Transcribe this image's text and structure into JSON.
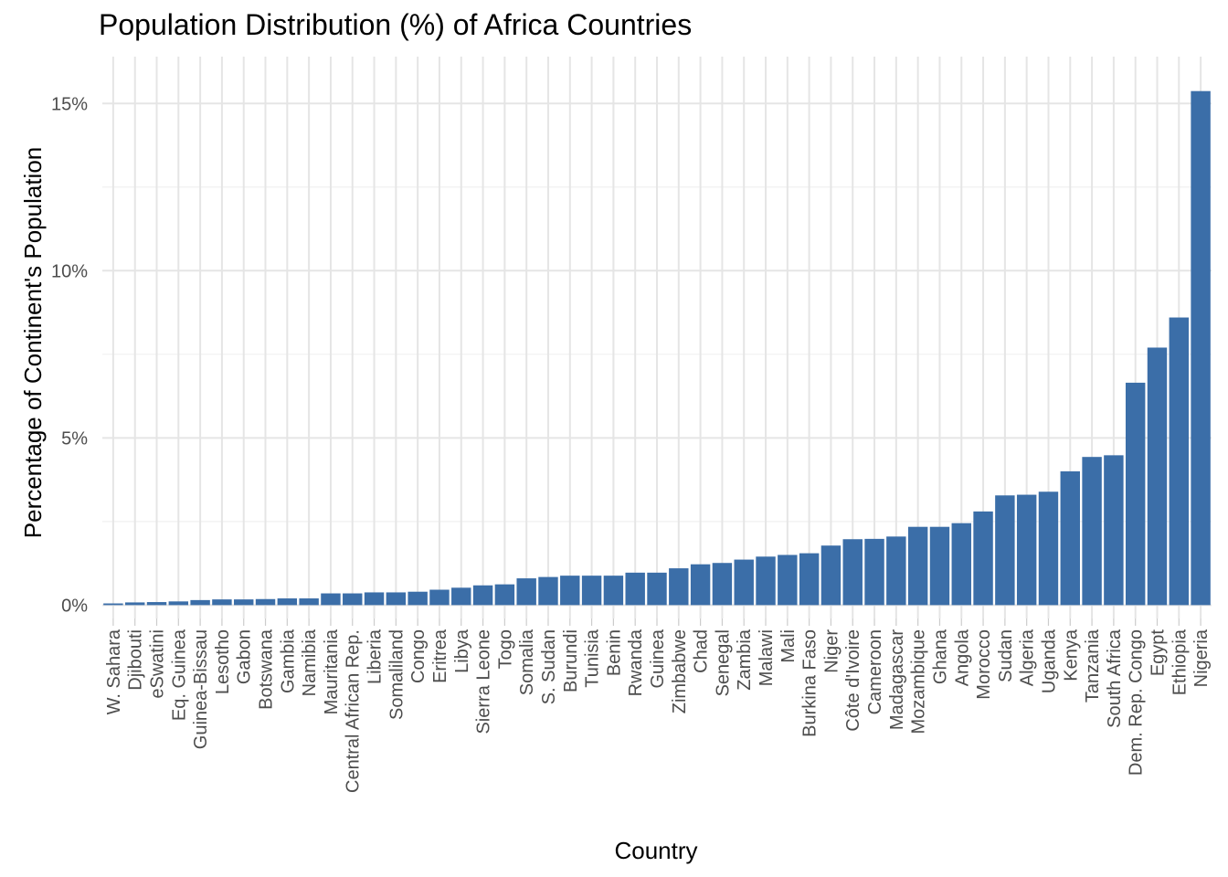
{
  "chart_data": {
    "type": "bar",
    "title": "Population Distribution (%) of Africa Countries",
    "xlabel": "Country",
    "ylabel": "Percentage of Continent's Population",
    "ylim": [
      -0.4,
      16.4
    ],
    "y_ticks": [
      0,
      5,
      10,
      15
    ],
    "y_tick_labels": [
      "0%",
      "5%",
      "10%",
      "15%"
    ],
    "grid": true,
    "bar_color": "#3b6ea8",
    "categories": [
      "W. Sahara",
      "Djibouti",
      "eSwatini",
      "Eq. Guinea",
      "Guinea-Bissau",
      "Lesotho",
      "Gabon",
      "Botswana",
      "Gambia",
      "Namibia",
      "Mauritania",
      "Central African Rep.",
      "Liberia",
      "Somaliland",
      "Congo",
      "Eritrea",
      "Libya",
      "Sierra Leone",
      "Togo",
      "Somalia",
      "S. Sudan",
      "Burundi",
      "Tunisia",
      "Benin",
      "Rwanda",
      "Guinea",
      "Zimbabwe",
      "Chad",
      "Senegal",
      "Zambia",
      "Malawi",
      "Mali",
      "Burkina Faso",
      "Niger",
      "Côte d'Ivoire",
      "Cameroon",
      "Madagascar",
      "Mozambique",
      "Ghana",
      "Angola",
      "Morocco",
      "Sudan",
      "Algeria",
      "Uganda",
      "Kenya",
      "Tanzania",
      "South Africa",
      "Dem. Rep. Congo",
      "Egypt",
      "Ethiopia",
      "Nigeria"
    ],
    "values": [
      0.05,
      0.08,
      0.09,
      0.11,
      0.15,
      0.17,
      0.17,
      0.18,
      0.2,
      0.2,
      0.35,
      0.35,
      0.38,
      0.38,
      0.4,
      0.46,
      0.52,
      0.59,
      0.62,
      0.8,
      0.84,
      0.88,
      0.88,
      0.88,
      0.97,
      0.97,
      1.1,
      1.22,
      1.26,
      1.36,
      1.45,
      1.5,
      1.55,
      1.78,
      1.97,
      1.98,
      2.05,
      2.34,
      2.34,
      2.45,
      2.8,
      3.28,
      3.3,
      3.39,
      4.0,
      4.43,
      4.48,
      6.65,
      7.7,
      8.6,
      15.37
    ]
  }
}
